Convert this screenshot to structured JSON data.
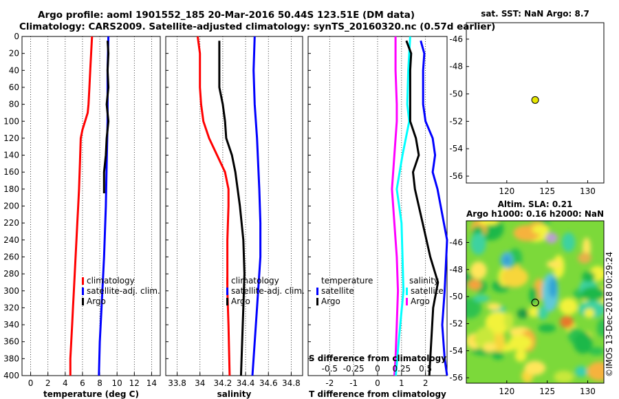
{
  "title": {
    "line1": "Argo profile: aoml 1901552_185 20-Mar-2016 50.44S 123.51E (DM data)",
    "line2": "Climatology: CARS2009. Satellite-adjusted climatology: synTS_20160320.nc (0.57d earlier)"
  },
  "colors": {
    "climatology": "#ff0000",
    "satellite": "#0000ff",
    "argo": "#000000",
    "s_diff": "#00ffff",
    "t_diff": "#ff00ff"
  },
  "chart_data": [
    {
      "type": "line",
      "id": "temperature",
      "xlabel": "temperature (deg C)",
      "ylabel": "",
      "xlim": [
        -1,
        15
      ],
      "ylim": [
        400,
        0
      ],
      "xticks": [
        "0",
        "2",
        "4",
        "6",
        "8",
        "10",
        "12",
        "14"
      ],
      "yticks": [
        "0",
        "20",
        "40",
        "60",
        "80",
        "100",
        "120",
        "140",
        "160",
        "180",
        "200",
        "220",
        "240",
        "260",
        "280",
        "300",
        "320",
        "340",
        "360",
        "380",
        "400"
      ],
      "legend": [
        "climatology",
        "satellite-adj. clim.",
        "Argo"
      ],
      "series": [
        {
          "name": "climatology",
          "points": [
            [
              7.1,
              0
            ],
            [
              7.0,
              20
            ],
            [
              6.9,
              40
            ],
            [
              6.8,
              60
            ],
            [
              6.7,
              80
            ],
            [
              6.6,
              90
            ],
            [
              6.3,
              100
            ],
            [
              6.0,
              110
            ],
            [
              5.8,
              120
            ],
            [
              5.7,
              150
            ],
            [
              5.6,
              180
            ],
            [
              5.5,
              200
            ],
            [
              5.4,
              220
            ],
            [
              5.2,
              260
            ],
            [
              5.0,
              300
            ],
            [
              4.9,
              320
            ],
            [
              4.8,
              340
            ],
            [
              4.7,
              360
            ],
            [
              4.6,
              380
            ],
            [
              4.6,
              400
            ]
          ]
        },
        {
          "name": "satellite-adj. clim.",
          "points": [
            [
              9.0,
              0
            ],
            [
              8.9,
              40
            ],
            [
              8.9,
              100
            ],
            [
              8.8,
              150
            ],
            [
              8.7,
              200
            ],
            [
              8.5,
              260
            ],
            [
              8.2,
              320
            ],
            [
              8.0,
              360
            ],
            [
              7.9,
              400
            ]
          ]
        },
        {
          "name": "Argo",
          "points": [
            [
              8.9,
              5
            ],
            [
              9.0,
              20
            ],
            [
              8.9,
              40
            ],
            [
              9.0,
              60
            ],
            [
              8.8,
              80
            ],
            [
              9.0,
              100
            ],
            [
              8.8,
              120
            ],
            [
              8.7,
              140
            ],
            [
              8.5,
              160
            ],
            [
              8.5,
              185
            ]
          ]
        }
      ]
    },
    {
      "type": "line",
      "id": "salinity",
      "xlabel": "salinity",
      "ylabel": "",
      "xlim": [
        33.7,
        34.9
      ],
      "ylim": [
        400,
        0
      ],
      "xticks": [
        "33.8",
        "34",
        "34.2",
        "34.4",
        "34.6",
        "34.8"
      ],
      "legend": [
        "climatology",
        "satellite-adj. clim.",
        "Argo"
      ],
      "series": [
        {
          "name": "climatology",
          "points": [
            [
              33.98,
              0
            ],
            [
              34.0,
              20
            ],
            [
              34.0,
              60
            ],
            [
              34.01,
              80
            ],
            [
              34.03,
              100
            ],
            [
              34.08,
              120
            ],
            [
              34.15,
              140
            ],
            [
              34.22,
              160
            ],
            [
              34.25,
              180
            ],
            [
              34.25,
              200
            ],
            [
              34.24,
              240
            ],
            [
              34.24,
              300
            ],
            [
              34.25,
              340
            ],
            [
              34.26,
              400
            ]
          ]
        },
        {
          "name": "satellite-adj. clim.",
          "points": [
            [
              34.48,
              0
            ],
            [
              34.47,
              40
            ],
            [
              34.48,
              80
            ],
            [
              34.5,
              120
            ],
            [
              34.52,
              180
            ],
            [
              34.53,
              220
            ],
            [
              34.53,
              260
            ],
            [
              34.5,
              320
            ],
            [
              34.47,
              380
            ],
            [
              34.46,
              400
            ]
          ]
        },
        {
          "name": "Argo",
          "points": [
            [
              34.17,
              5
            ],
            [
              34.17,
              40
            ],
            [
              34.17,
              60
            ],
            [
              34.2,
              80
            ],
            [
              34.22,
              100
            ],
            [
              34.23,
              120
            ],
            [
              34.28,
              140
            ],
            [
              34.31,
              160
            ],
            [
              34.35,
              200
            ],
            [
              34.38,
              240
            ],
            [
              34.39,
              280
            ],
            [
              34.38,
              320
            ],
            [
              34.37,
              360
            ],
            [
              34.36,
              400
            ]
          ]
        }
      ]
    },
    {
      "type": "line",
      "id": "difference",
      "xlabel": "T difference from climatology",
      "ylabel": "",
      "xlim": [
        -2.9,
        2.9
      ],
      "ylim": [
        400,
        0
      ],
      "xticks": [
        "-2",
        "-1",
        "0",
        "1",
        "2"
      ],
      "x2label": "S difference from climatology",
      "x2lim": [
        -0.725,
        0.725
      ],
      "x2ticks": [
        "-0.5",
        "-0.25",
        "0",
        "0.25",
        "0.5"
      ],
      "legend": [
        "temperature",
        "satellite",
        "Argo",
        "salinity",
        "satellite",
        "Argo"
      ],
      "series": [
        {
          "name": "T satellite (magenta)",
          "axis": "T",
          "points": [
            [
              0.75,
              0
            ],
            [
              0.75,
              40
            ],
            [
              0.8,
              80
            ],
            [
              0.8,
              100
            ],
            [
              0.7,
              140
            ],
            [
              0.6,
              180
            ],
            [
              0.7,
              220
            ],
            [
              0.8,
              260
            ],
            [
              0.85,
              300
            ],
            [
              0.8,
              340
            ],
            [
              0.75,
              380
            ],
            [
              0.7,
              400
            ]
          ]
        },
        {
          "name": "S satellite (cyan)",
          "axis": "S",
          "points": [
            [
              0.34,
              0
            ],
            [
              0.32,
              40
            ],
            [
              0.31,
              80
            ],
            [
              0.33,
              100
            ],
            [
              0.26,
              140
            ],
            [
              0.2,
              180
            ],
            [
              0.25,
              220
            ],
            [
              0.27,
              300
            ],
            [
              0.22,
              360
            ],
            [
              0.19,
              400
            ]
          ]
        },
        {
          "name": "T Argo (blue)",
          "axis": "T",
          "points": [
            [
              1.8,
              5
            ],
            [
              1.95,
              20
            ],
            [
              1.9,
              40
            ],
            [
              1.9,
              80
            ],
            [
              2.0,
              100
            ],
            [
              2.3,
              120
            ],
            [
              2.4,
              140
            ],
            [
              2.3,
              160
            ],
            [
              2.5,
              180
            ],
            [
              2.9,
              240
            ],
            [
              2.8,
              300
            ],
            [
              2.7,
              340
            ],
            [
              2.8,
              380
            ],
            [
              2.9,
              400
            ]
          ]
        },
        {
          "name": "S Argo (black)",
          "axis": "S",
          "points": [
            [
              0.3,
              5
            ],
            [
              0.35,
              20
            ],
            [
              0.34,
              40
            ],
            [
              0.34,
              60
            ],
            [
              0.34,
              100
            ],
            [
              0.4,
              120
            ],
            [
              0.43,
              140
            ],
            [
              0.37,
              160
            ],
            [
              0.39,
              180
            ],
            [
              0.47,
              220
            ],
            [
              0.55,
              260
            ],
            [
              0.63,
              290
            ],
            [
              0.58,
              320
            ],
            [
              0.56,
              360
            ],
            [
              0.54,
              400
            ]
          ]
        }
      ]
    },
    {
      "type": "scatter",
      "id": "sat-sst-map",
      "title": "sat. SST: NaN Argo: 8.7",
      "xlim": [
        115,
        132
      ],
      "ylim": [
        -56.5,
        -44.8
      ],
      "xticks": [
        "120",
        "125",
        "130"
      ],
      "yticks": [
        "-46",
        "-48",
        "-50",
        "-52",
        "-54",
        "-56"
      ],
      "points": [
        {
          "lon": 123.51,
          "lat": -50.44
        }
      ]
    },
    {
      "type": "heatmap",
      "id": "sla-map",
      "title": "Altim. SLA: 0.21",
      "subtitle": "Argo h1000: 0.16 h2000: NaN",
      "xlim": [
        115,
        132
      ],
      "ylim": [
        -56.4,
        -44.4
      ],
      "xticks": [
        "120",
        "125",
        "130"
      ],
      "yticks": [
        "-46",
        "-48",
        "-50",
        "-52",
        "-54",
        "-56"
      ],
      "points": [
        {
          "lon": 123.51,
          "lat": -50.44
        }
      ]
    }
  ],
  "credit": "©IMOS 13-Dec-2018 00:29:24"
}
